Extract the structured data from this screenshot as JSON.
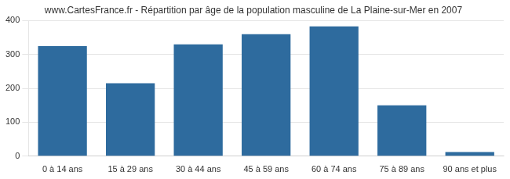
{
  "chart_data": {
    "type": "bar",
    "title": "www.CartesFrance.fr - Répartition par âge de la population masculine de La Plaine-sur-Mer en 2007",
    "categories": [
      "0 à 14 ans",
      "15 à 29 ans",
      "30 à 44 ans",
      "45 à 59 ans",
      "60 à 74 ans",
      "75 à 89 ans",
      "90 ans et plus"
    ],
    "values": [
      325,
      215,
      330,
      360,
      383,
      150,
      12
    ],
    "color": "#2e6b9e",
    "ylim": [
      0,
      400
    ],
    "yticks": [
      0,
      100,
      200,
      300,
      400
    ],
    "grid": true
  }
}
